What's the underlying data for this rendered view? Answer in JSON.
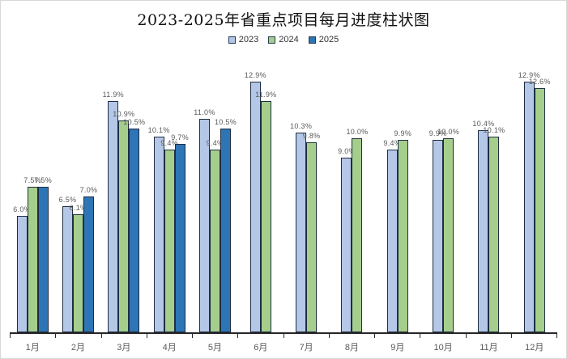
{
  "title": "2023-2025年省重点项目每月进度柱状图",
  "chart_data": {
    "type": "bar",
    "title": "2023-2025年省重点项目每月进度柱状图",
    "categories": [
      "1月",
      "2月",
      "3月",
      "4月",
      "5月",
      "6月",
      "7月",
      "8月",
      "9月",
      "10月",
      "11月",
      "12月"
    ],
    "series": [
      {
        "name": "2023",
        "color": "#B4C7E7",
        "values": [
          6.0,
          6.5,
          11.9,
          10.1,
          11.0,
          12.9,
          10.3,
          9.0,
          9.4,
          9.9,
          10.4,
          12.9
        ]
      },
      {
        "name": "2024",
        "color": "#A5CE8C",
        "values": [
          7.5,
          6.1,
          10.9,
          9.4,
          9.4,
          11.9,
          9.8,
          10.0,
          9.9,
          10.0,
          10.1,
          12.6
        ]
      },
      {
        "name": "2025",
        "color": "#2E75B6",
        "values": [
          7.5,
          7.0,
          10.5,
          9.7,
          10.5,
          null,
          null,
          null,
          null,
          null,
          null,
          null
        ]
      }
    ],
    "unit": "%",
    "ylim": [
      0,
      14
    ],
    "data_labels": true,
    "grid": false,
    "legend_position": "top",
    "xlabel": "",
    "ylabel": ""
  },
  "style": {
    "label_color": "#595959",
    "axis_color": "#262626",
    "bar_border_color": "#1f2d42"
  }
}
